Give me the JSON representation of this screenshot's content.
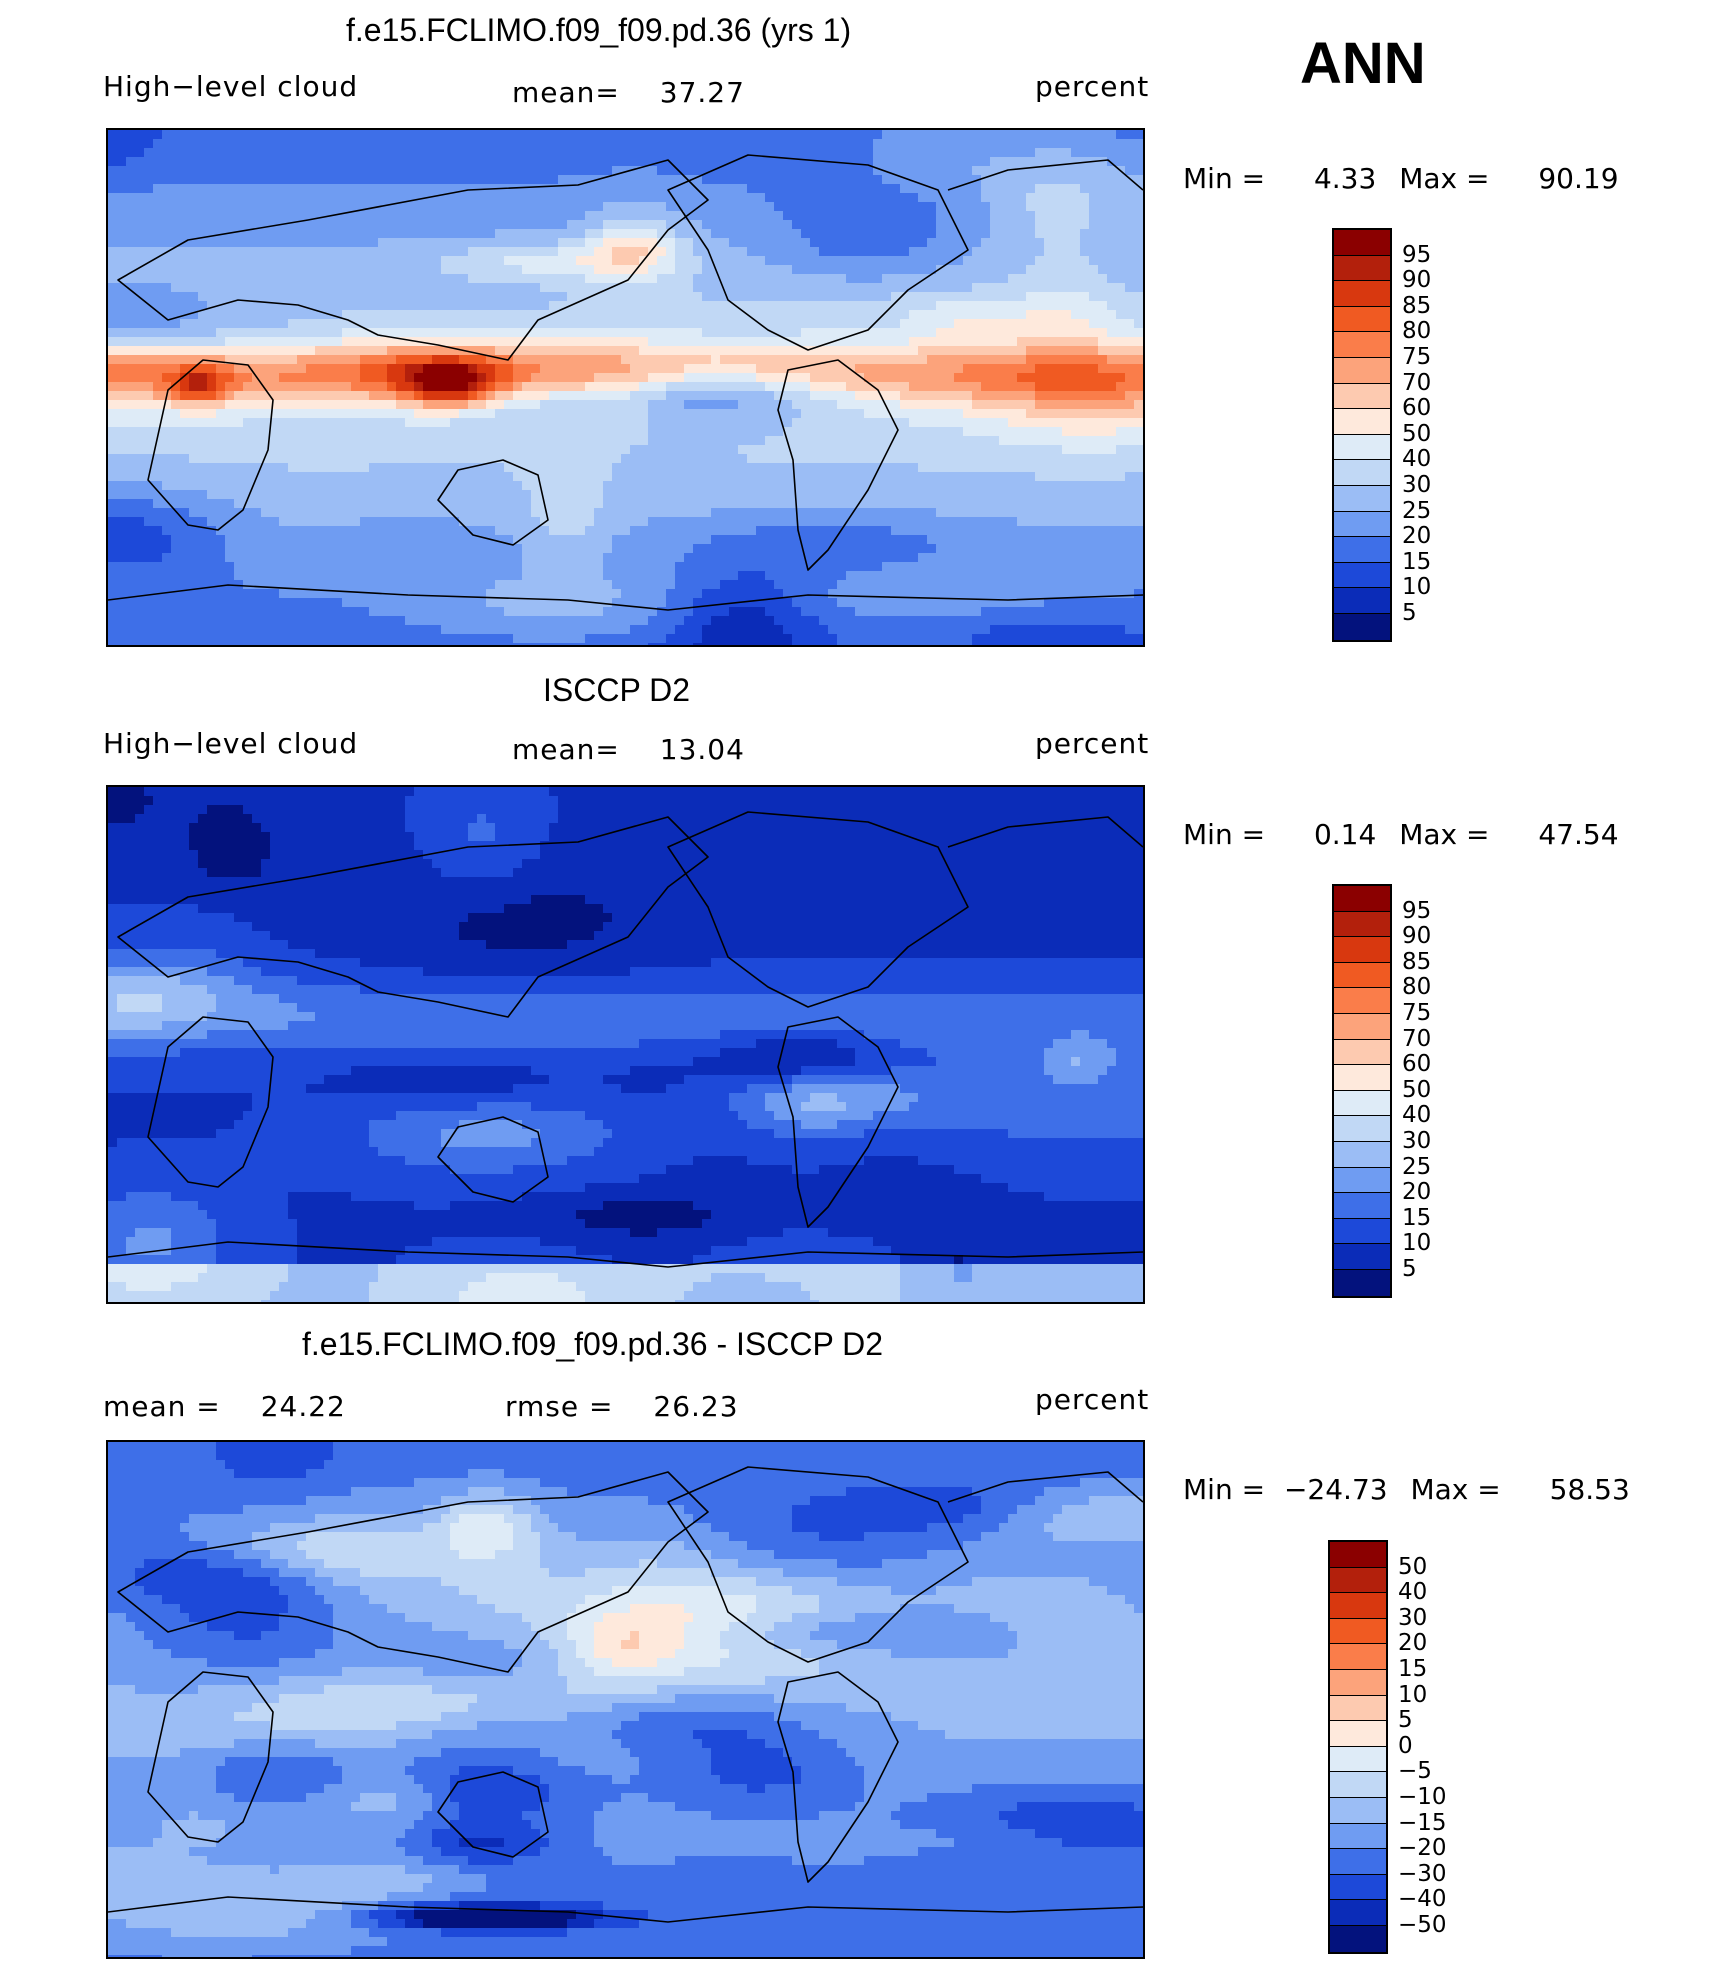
{
  "season_label": "ANN",
  "panels": [
    {
      "title": "f.e15.FCLIMO.f09_f09.pd.36 (yrs 1)",
      "left_label": "High−level cloud",
      "center_label_name": "mean=",
      "center_label_value": "37.27",
      "right_label": "percent",
      "min_label": "Min  =",
      "min_value": "4.33",
      "max_label": "Max  =",
      "max_value": "90.19",
      "colorbar_ticks": [
        "95",
        "90",
        "85",
        "80",
        "75",
        "70",
        "60",
        "50",
        "40",
        "30",
        "25",
        "20",
        "15",
        "10",
        "5"
      ],
      "colorbar_colors": [
        "#8b0000",
        "#b3200c",
        "#d8380f",
        "#f05a22",
        "#fa7d4a",
        "#fca37b",
        "#fdcab0",
        "#fee9dc",
        "#deebf7",
        "#c1d8f5",
        "#9bbdf5",
        "#6f9cf2",
        "#3e6fe8",
        "#1d49d9",
        "#0b2cb8",
        "#03127d"
      ],
      "map_palette": "sequential",
      "map_seed": 11
    },
    {
      "title": "ISCCP D2",
      "left_label": "High−level cloud",
      "center_label_name": "mean=",
      "center_label_value": "13.04",
      "right_label": "percent",
      "min_label": "Min  =",
      "min_value": "0.14",
      "max_label": "Max  =",
      "max_value": "47.54",
      "colorbar_ticks": [
        "95",
        "90",
        "85",
        "80",
        "75",
        "70",
        "60",
        "50",
        "40",
        "30",
        "25",
        "20",
        "15",
        "10",
        "5"
      ],
      "colorbar_colors": [
        "#8b0000",
        "#b3200c",
        "#d8380f",
        "#f05a22",
        "#fa7d4a",
        "#fca37b",
        "#fdcab0",
        "#fee9dc",
        "#deebf7",
        "#c1d8f5",
        "#9bbdf5",
        "#6f9cf2",
        "#3e6fe8",
        "#1d49d9",
        "#0b2cb8",
        "#03127d"
      ],
      "map_palette": "blue",
      "map_seed": 23
    },
    {
      "title": "f.e15.FCLIMO.f09_f09.pd.36 - ISCCP D2",
      "left_label_name": "mean  =",
      "left_label_value": "24.22",
      "center_label_name": "rmse  =",
      "center_label_value": "26.23",
      "right_label": "percent",
      "min_label": "Min  =",
      "min_value": "−24.73",
      "max_label": "Max  =",
      "max_value": "58.53",
      "colorbar_ticks": [
        "50",
        "40",
        "30",
        "20",
        "15",
        "10",
        "5",
        "0",
        "−5",
        "−10",
        "−15",
        "−20",
        "−30",
        "−40",
        "−50"
      ],
      "colorbar_colors": [
        "#8b0000",
        "#b3200c",
        "#d8380f",
        "#f05a22",
        "#fa7d4a",
        "#fca37b",
        "#fdcab0",
        "#fee9dc",
        "#deebf7",
        "#c1d8f5",
        "#9bbdf5",
        "#6f9cf2",
        "#3e6fe8",
        "#1d49d9",
        "#0b2cb8",
        "#03127d"
      ],
      "map_palette": "red",
      "map_seed": 37
    }
  ]
}
